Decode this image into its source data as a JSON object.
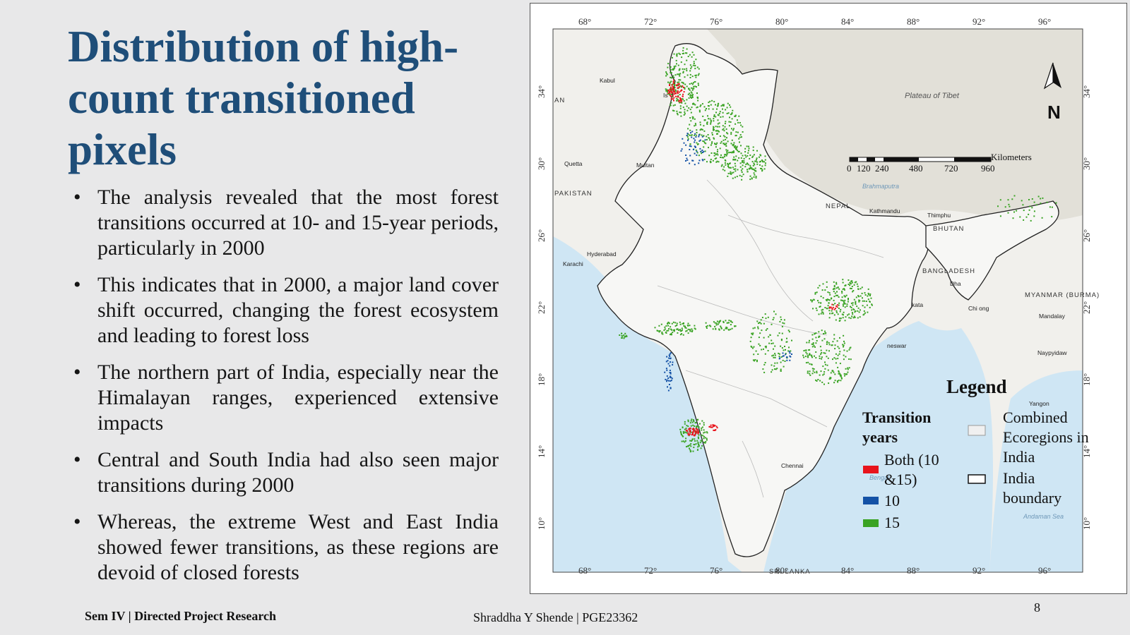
{
  "slide": {
    "title": "Distribution of high-count transitioned pixels",
    "bullets": [
      "The analysis revealed that the most forest transitions occurred at 10- and 15-year periods, particularly in 2000",
      "This indicates that in 2000, a major land cover shift occurred, changing the forest ecosystem and leading to forest loss",
      "The northern part of India, especially near the Himalayan ranges, experienced extensive impacts",
      "Central and South India had also seen major transitions during 2000",
      "Whereas, the extreme West and East India showed fewer transitions, as these regions are devoid of closed forests"
    ],
    "bullet_symbol": "•",
    "footer_left": "Sem IV | Directed Project Research",
    "footer_center": "Shraddha Y Shende | PGE23362",
    "page_number": "8"
  },
  "map": {
    "lon_ticks": [
      "68°",
      "72°",
      "76°",
      "80°",
      "84°",
      "88°",
      "92°",
      "96°"
    ],
    "lat_ticks": [
      "34°",
      "30°",
      "26°",
      "22°",
      "18°",
      "14°",
      "10°"
    ],
    "north_arrow": "N",
    "region_label": "Plateau of Tibet",
    "countries": {
      "pakistan": "PAKISTAN",
      "nepal": "NEPAL",
      "bhutan": "BHUTAN",
      "bangladesh": "BANGLADESH",
      "myanmar": "MYANMAR (BURMA)",
      "srilanka": "SRI LANKA",
      "an": "AN"
    },
    "cities": {
      "kabul": "Kabul",
      "quetta": "Quetta",
      "multan": "Multan",
      "karachi": "Karachi",
      "hyderabad": "Hyderabad",
      "kathmandu": "Kathmandu",
      "thimphu": "Thimphu",
      "dhaka": "Dha",
      "kolkata": "kata",
      "chittagong": "Chi    ong",
      "mandalay": "Mandalay",
      "naypyidaw": "Naypyidaw",
      "yangon": "Yangon",
      "bhubaneswar": "neswar",
      "chennai": "Chennai",
      "is": "Is"
    },
    "water_labels": {
      "bay": "Bengal",
      "andaman": "Andaman Sea",
      "brahmaputra": "Brahmaputra"
    },
    "scale_bar": {
      "unit": "Kilometers",
      "labels": [
        "0",
        "120",
        "240",
        "480",
        "720",
        "960"
      ]
    },
    "colors": {
      "both": "#e8141c",
      "ten": "#1452a6",
      "fifteen": "#3aa324",
      "sea": "#cfe6f4",
      "land": "#f4f4f1",
      "terrain": "#d9d7cf"
    },
    "legend": {
      "title": "Legend",
      "transition_title": "Transition years",
      "items": [
        {
          "label": "Both (10 &15)",
          "color": "#e8141c"
        },
        {
          "label": "10",
          "color": "#1452a6"
        },
        {
          "label": "15",
          "color": "#3aa324"
        }
      ],
      "ecoregions_label": "Combined Ecoregions in India",
      "boundary_label": "India boundary"
    }
  }
}
